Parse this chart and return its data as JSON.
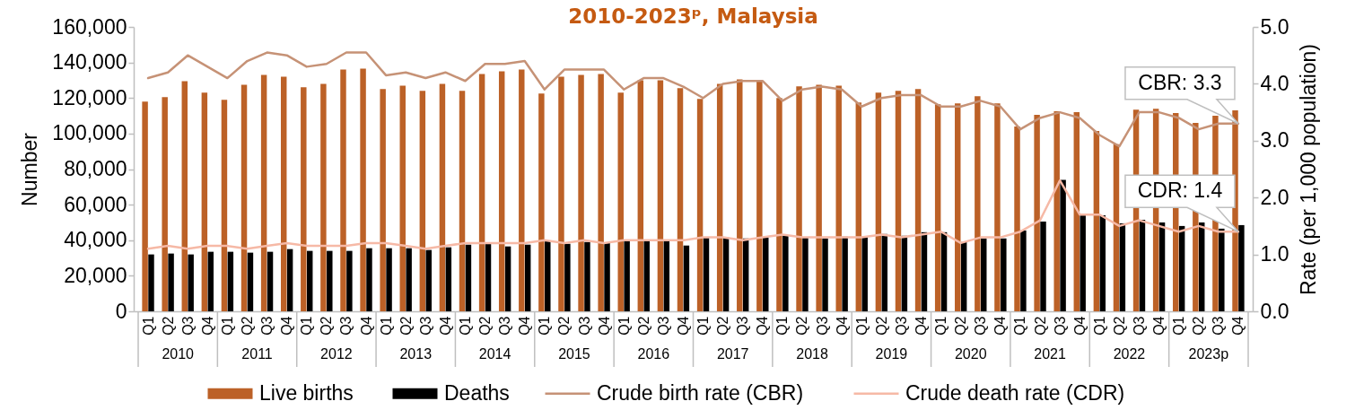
{
  "chart_data": {
    "type": "bar",
    "title": "2010-2023ᵖ, Malaysia",
    "categories": [
      "Q1",
      "Q2",
      "Q3",
      "Q4",
      "Q1",
      "Q2",
      "Q3",
      "Q4",
      "Q1",
      "Q2",
      "Q3",
      "Q4",
      "Q1",
      "Q2",
      "Q3",
      "Q4",
      "Q1",
      "Q2",
      "Q3",
      "Q4",
      "Q1",
      "Q2",
      "Q3",
      "Q4",
      "Q1",
      "Q2",
      "Q3",
      "Q4",
      "Q1",
      "Q2",
      "Q3",
      "Q4",
      "Q1",
      "Q2",
      "Q3",
      "Q4",
      "Q1",
      "Q2",
      "Q3",
      "Q4",
      "Q1",
      "Q2",
      "Q3",
      "Q4",
      "Q1",
      "Q2",
      "Q3",
      "Q4",
      "Q1",
      "Q2",
      "Q3",
      "Q4",
      "Q1",
      "Q2",
      "Q3",
      "Q4"
    ],
    "series": [
      {
        "name": "Live births",
        "color": "#bc6127",
        "values": [
          118000,
          120500,
          129500,
          123000,
          119000,
          127500,
          133000,
          132000,
          126000,
          128000,
          136000,
          136500,
          125000,
          127000,
          124000,
          128000,
          124000,
          133500,
          135000,
          136000,
          122500,
          132000,
          133000,
          133500,
          123000,
          130000,
          130000,
          125500,
          119500,
          128000,
          130500,
          130000,
          120000,
          126500,
          127500,
          127000,
          117500,
          123000,
          124000,
          125000,
          116500,
          117000,
          121000,
          117000,
          104000,
          110500,
          112500,
          112000,
          101500,
          94000,
          113500,
          114000,
          111500,
          106000,
          110000,
          113000
        ]
      },
      {
        "name": "Deaths",
        "color": "#000000",
        "values": [
          32000,
          32500,
          32000,
          33500,
          33500,
          33000,
          33500,
          35000,
          34000,
          34000,
          34000,
          35500,
          35500,
          35500,
          34500,
          36000,
          37500,
          38000,
          36500,
          37500,
          39500,
          38000,
          39000,
          38500,
          40000,
          39500,
          40000,
          37000,
          41500,
          41500,
          41000,
          41500,
          42500,
          41500,
          41000,
          42000,
          42000,
          43500,
          42500,
          44500,
          44500,
          39000,
          41000,
          41000,
          45500,
          50500,
          74000,
          54000,
          54000,
          49500,
          51500,
          50000,
          48000,
          50000,
          46500,
          48500
        ]
      },
      {
        "name": "Crude birth rate (CBR)",
        "type": "line",
        "axis": "y2",
        "color": "#c69276",
        "values": [
          4.1,
          4.2,
          4.5,
          4.3,
          4.1,
          4.4,
          4.55,
          4.5,
          4.3,
          4.35,
          4.55,
          4.55,
          4.15,
          4.2,
          4.1,
          4.2,
          4.05,
          4.35,
          4.35,
          4.4,
          3.9,
          4.25,
          4.25,
          4.25,
          3.9,
          4.1,
          4.1,
          3.95,
          3.75,
          4.0,
          4.05,
          4.05,
          3.7,
          3.9,
          3.95,
          3.9,
          3.6,
          3.75,
          3.8,
          3.8,
          3.6,
          3.6,
          3.7,
          3.6,
          3.2,
          3.4,
          3.5,
          3.4,
          3.1,
          2.9,
          3.5,
          3.5,
          3.4,
          3.2,
          3.3,
          3.3
        ]
      },
      {
        "name": "Crude death rate (CDR)",
        "type": "line",
        "axis": "y2",
        "color": "#f6b9a6",
        "values": [
          1.1,
          1.15,
          1.1,
          1.15,
          1.15,
          1.1,
          1.15,
          1.2,
          1.15,
          1.15,
          1.15,
          1.2,
          1.2,
          1.15,
          1.1,
          1.15,
          1.2,
          1.2,
          1.2,
          1.2,
          1.25,
          1.2,
          1.25,
          1.2,
          1.25,
          1.25,
          1.25,
          1.25,
          1.3,
          1.3,
          1.25,
          1.3,
          1.35,
          1.3,
          1.3,
          1.3,
          1.3,
          1.35,
          1.3,
          1.35,
          1.4,
          1.2,
          1.3,
          1.3,
          1.4,
          1.6,
          2.3,
          1.7,
          1.7,
          1.5,
          1.6,
          1.5,
          1.4,
          1.5,
          1.4,
          1.4
        ]
      }
    ],
    "ylabel": "Number",
    "y2label": "Rate (per 1,000 population)",
    "ylim": [
      0,
      160000
    ],
    "yticks": [
      0,
      {
        "value": 20000,
        "label": "20,000"
      },
      {
        "value": 40000,
        "label": "40,000"
      },
      {
        "value": 60000,
        "label": "60,000"
      },
      {
        "value": 80000,
        "label": "80,000"
      },
      {
        "value": 100000,
        "label": "100,000"
      },
      {
        "value": 120000,
        "label": "120,000"
      },
      {
        "value": 140000,
        "label": "140,000"
      },
      {
        "value": 160000,
        "label": "160,000"
      }
    ],
    "y2lim": [
      0,
      5
    ],
    "y2ticks": [
      {
        "value": 0,
        "label": "0.0"
      },
      {
        "value": 1,
        "label": "1.0"
      },
      {
        "value": 2,
        "label": "2.0"
      },
      {
        "value": 3,
        "label": "3.0"
      },
      {
        "value": 4,
        "label": "4.0"
      },
      {
        "value": 5,
        "label": "5.0"
      }
    ],
    "annotations": [
      "2010",
      "2011",
      "2012",
      "2013",
      "2014",
      "2015",
      "2016",
      "2017",
      "2018",
      "2019",
      "2020",
      "2021",
      "2022",
      "2023p",
      "CBR:  3.3",
      "CDR:  1.4"
    ],
    "grid": false,
    "legend": "bottom"
  }
}
